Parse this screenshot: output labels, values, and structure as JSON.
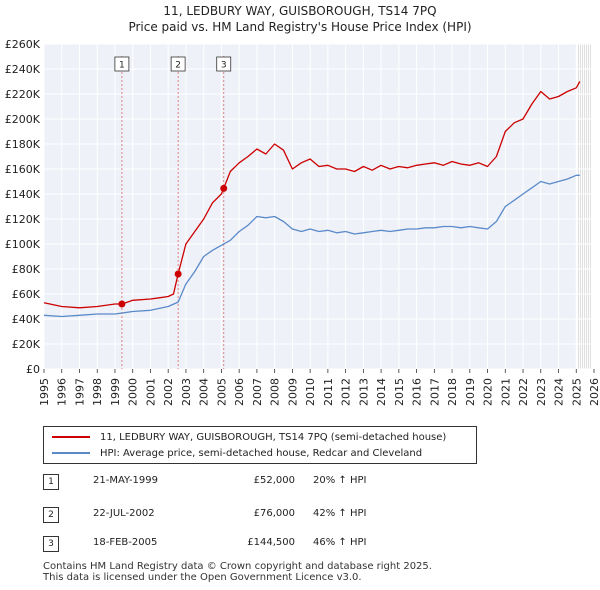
{
  "title": {
    "line1": "11, LEDBURY WAY, GUISBOROUGH, TS14 7PQ",
    "line2": "Price paid vs. HM Land Registry's House Price Index (HPI)"
  },
  "legend": {
    "property": "11, LEDBURY WAY, GUISBOROUGH, TS14 7PQ (semi-detached house)",
    "hpi": "HPI: Average price, semi-detached house, Redcar and Cleveland"
  },
  "sales": [
    {
      "num": "1",
      "date": "21-MAY-1999",
      "price": "£52,000",
      "hpi": "20% ↑ HPI"
    },
    {
      "num": "2",
      "date": "22-JUL-2002",
      "price": "£76,000",
      "hpi": "42% ↑ HPI"
    },
    {
      "num": "3",
      "date": "18-FEB-2005",
      "price": "£144,500",
      "hpi": "46% ↑ HPI"
    }
  ],
  "footer": {
    "line1": "Contains HM Land Registry data © Crown copyright and database right 2025.",
    "line2": "This data is licensed under the Open Government Licence v3.0."
  },
  "colors": {
    "property": "#cc0000",
    "hpi": "#5b8ac9",
    "plot_bg": "#eef1f8",
    "marker_line": "#e08080"
  },
  "chart_data": {
    "type": "line",
    "xlim": [
      1995,
      2026
    ],
    "ylim": [
      0,
      260000
    ],
    "x_ticks": [
      1995,
      1996,
      1997,
      1998,
      1999,
      2000,
      2001,
      2002,
      2003,
      2004,
      2005,
      2006,
      2007,
      2008,
      2009,
      2010,
      2011,
      2012,
      2013,
      2014,
      2015,
      2016,
      2017,
      2018,
      2019,
      2020,
      2021,
      2022,
      2023,
      2024,
      2025,
      2026
    ],
    "y_ticks": [
      0,
      20000,
      40000,
      60000,
      80000,
      100000,
      120000,
      140000,
      160000,
      180000,
      200000,
      220000,
      240000,
      260000
    ],
    "y_tick_labels": [
      "£0",
      "£20K",
      "£40K",
      "£60K",
      "£80K",
      "£100K",
      "£120K",
      "£140K",
      "£160K",
      "£180K",
      "£200K",
      "£220K",
      "£240K",
      "£260K"
    ],
    "grid": true,
    "series": [
      {
        "name": "11, LEDBURY WAY, GUISBOROUGH, TS14 7PQ (semi-detached house)",
        "x": [
          1995.0,
          1996.0,
          1997.0,
          1998.0,
          1999.0,
          1999.39,
          2000.0,
          2001.0,
          2001.5,
          2002.0,
          2002.3,
          2002.56,
          2003.0,
          2003.5,
          2004.0,
          2004.5,
          2005.0,
          2005.13,
          2005.5,
          2006.0,
          2006.5,
          2007.0,
          2007.5,
          2008.0,
          2008.5,
          2009.0,
          2009.5,
          2010.0,
          2010.5,
          2011.0,
          2011.5,
          2012.0,
          2012.5,
          2013.0,
          2013.5,
          2014.0,
          2014.5,
          2015.0,
          2015.5,
          2016.0,
          2016.5,
          2017.0,
          2017.5,
          2018.0,
          2018.5,
          2019.0,
          2019.5,
          2020.0,
          2020.5,
          2021.0,
          2021.5,
          2022.0,
          2022.5,
          2023.0,
          2023.5,
          2024.0,
          2024.5,
          2025.0,
          2025.2
        ],
        "y": [
          53000,
          50000,
          49000,
          50000,
          52000,
          52000,
          55000,
          56000,
          57000,
          58000,
          60000,
          76000,
          100000,
          110000,
          120000,
          133000,
          140000,
          144500,
          158000,
          165000,
          170000,
          176000,
          172000,
          180000,
          175000,
          160000,
          165000,
          168000,
          162000,
          163000,
          160000,
          160000,
          158000,
          162000,
          159000,
          163000,
          160000,
          162000,
          161000,
          163000,
          164000,
          165000,
          163000,
          166000,
          164000,
          163000,
          165000,
          162000,
          170000,
          190000,
          197000,
          200000,
          212000,
          222000,
          216000,
          218000,
          222000,
          225000,
          230000
        ]
      },
      {
        "name": "HPI: Average price, semi-detached house, Redcar and Cleveland",
        "x": [
          1995.0,
          1996.0,
          1997.0,
          1998.0,
          1999.0,
          2000.0,
          2001.0,
          2002.0,
          2002.56,
          2003.0,
          2003.5,
          2004.0,
          2004.5,
          2005.0,
          2005.5,
          2006.0,
          2006.5,
          2007.0,
          2007.5,
          2008.0,
          2008.5,
          2009.0,
          2009.5,
          2010.0,
          2010.5,
          2011.0,
          2011.5,
          2012.0,
          2012.5,
          2013.0,
          2013.5,
          2014.0,
          2014.5,
          2015.0,
          2015.5,
          2016.0,
          2016.5,
          2017.0,
          2017.5,
          2018.0,
          2018.5,
          2019.0,
          2019.5,
          2020.0,
          2020.5,
          2021.0,
          2021.5,
          2022.0,
          2022.5,
          2023.0,
          2023.5,
          2024.0,
          2024.5,
          2025.0,
          2025.2
        ],
        "y": [
          43000,
          42000,
          43000,
          44000,
          44000,
          46000,
          47000,
          50000,
          53500,
          68000,
          78000,
          90000,
          95000,
          99000,
          103000,
          110000,
          115000,
          122000,
          121000,
          122000,
          118000,
          112000,
          110000,
          112000,
          110000,
          111000,
          109000,
          110000,
          108000,
          109000,
          110000,
          111000,
          110000,
          111000,
          112000,
          112000,
          113000,
          113000,
          114000,
          114000,
          113000,
          114000,
          113000,
          112000,
          118000,
          130000,
          135000,
          140000,
          145000,
          150000,
          148000,
          150000,
          152000,
          155000,
          155000
        ]
      }
    ],
    "sales_markers": [
      {
        "label": "1",
        "x": 1999.39,
        "y": 52000
      },
      {
        "label": "2",
        "x": 2002.56,
        "y": 76000
      },
      {
        "label": "3",
        "x": 2005.13,
        "y": 144500
      }
    ]
  }
}
